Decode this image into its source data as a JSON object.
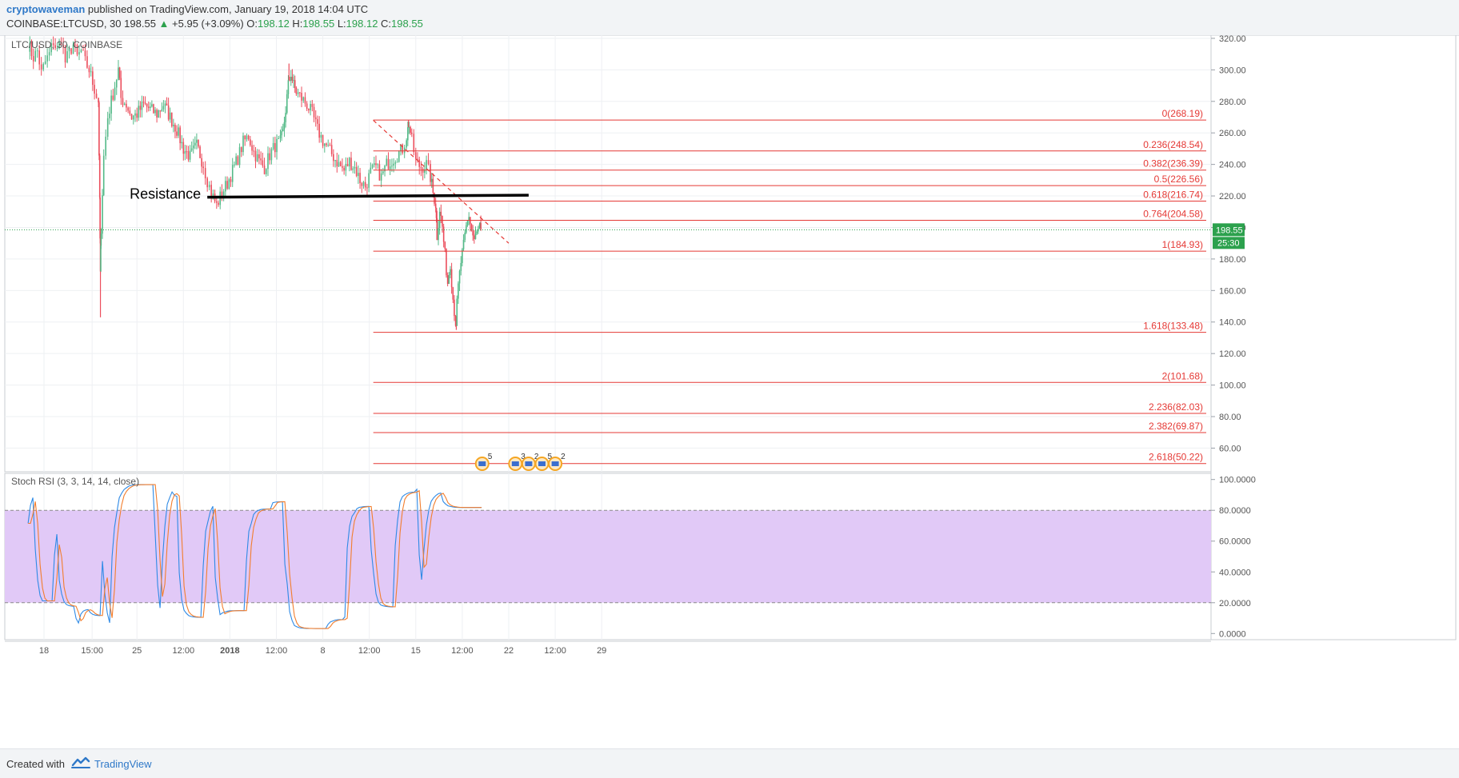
{
  "header": {
    "author": "cryptowaveman",
    "published": "published on TradingView.com, January 19, 2018 14:04 UTC",
    "symbol_line": "COINBASE:LTCUSD, 30",
    "last": "198.55",
    "change": "+5.95 (+3.09%)",
    "o_label": "O:",
    "o_value": "198.12",
    "h_label": "H:",
    "h_value": "198.55",
    "l_label": "L:",
    "l_value": "198.12",
    "c_label": "C:",
    "c_value": "198.55"
  },
  "footer": {
    "created_with": "Created with",
    "brand": "TradingView"
  },
  "chart_data": [
    {
      "type": "candlestick",
      "title": "LTC/USD, 30, COINBASE",
      "price_scale": {
        "range": [
          45,
          322
        ],
        "ticks": [
          320,
          300,
          280,
          260,
          240,
          220,
          200,
          180,
          160,
          140,
          120,
          100,
          80,
          60
        ],
        "tick_labels": [
          "320.00",
          "300.00",
          "280.00",
          "260.00",
          "240.00",
          "220.00",
          "200.00",
          "180.00",
          "160.00",
          "140.00",
          "120.00",
          "100.00",
          "80.00",
          "60.00"
        ]
      },
      "time_axis": {
        "labels": [
          "18",
          "15:00",
          "25",
          "12:00",
          "2018",
          "12:00",
          "8",
          "12:00",
          "15",
          "12:00",
          "22",
          "12:00",
          "29"
        ],
        "label_positions_days": [
          0,
          3.625,
          7,
          10.5,
          14,
          17.5,
          21,
          24.5,
          28,
          31.5,
          35,
          38.5,
          42
        ]
      },
      "last_price": {
        "label": "198.55",
        "countdown": "25:30",
        "value": 198.55,
        "color": "#2ca14d"
      },
      "price_path": [
        [
          -1.2,
          316
        ],
        [
          -0.8,
          308
        ],
        [
          -0.5,
          312
        ],
        [
          -0.2,
          298
        ],
        [
          0.1,
          305
        ],
        [
          0.4,
          310
        ],
        [
          0.7,
          318
        ],
        [
          1.0,
          312
        ],
        [
          1.3,
          320
        ],
        [
          1.6,
          305
        ],
        [
          1.9,
          311
        ],
        [
          2.2,
          316
        ],
        [
          2.5,
          308
        ],
        [
          2.8,
          312
        ],
        [
          3.1,
          305
        ],
        [
          3.4,
          300
        ],
        [
          3.8,
          288
        ],
        [
          4.1,
          280
        ],
        [
          4.2,
          215
        ],
        [
          4.25,
          170
        ],
        [
          4.3,
          200
        ],
        [
          4.5,
          245
        ],
        [
          4.8,
          270
        ],
        [
          5.2,
          285
        ],
        [
          5.6,
          300
        ],
        [
          5.8,
          282
        ],
        [
          6.2,
          278
        ],
        [
          6.6,
          270
        ],
        [
          7.0,
          272
        ],
        [
          7.5,
          278
        ],
        [
          8.0,
          275
        ],
        [
          8.5,
          272
        ],
        [
          9.0,
          278
        ],
        [
          9.5,
          270
        ],
        [
          10.0,
          262
        ],
        [
          10.5,
          250
        ],
        [
          11.0,
          245
        ],
        [
          11.5,
          252
        ],
        [
          12.0,
          240
        ],
        [
          12.3,
          230
        ],
        [
          12.6,
          222
        ],
        [
          13.0,
          214
        ],
        [
          13.4,
          222
        ],
        [
          13.8,
          228
        ],
        [
          14.2,
          236
        ],
        [
          14.6,
          244
        ],
        [
          15.0,
          254
        ],
        [
          15.4,
          258
        ],
        [
          15.8,
          248
        ],
        [
          16.2,
          242
        ],
        [
          16.6,
          238
        ],
        [
          17.0,
          246
        ],
        [
          17.4,
          252
        ],
        [
          17.8,
          254
        ],
        [
          18.0,
          260
        ],
        [
          18.2,
          275
        ],
        [
          18.4,
          290
        ],
        [
          18.6,
          298
        ],
        [
          18.8,
          290
        ],
        [
          19.0,
          286
        ],
        [
          19.4,
          282
        ],
        [
          19.8,
          278
        ],
        [
          20.2,
          272
        ],
        [
          20.6,
          262
        ],
        [
          21.0,
          255
        ],
        [
          21.4,
          250
        ],
        [
          21.8,
          245
        ],
        [
          22.2,
          240
        ],
        [
          22.6,
          236
        ],
        [
          23.0,
          242
        ],
        [
          23.4,
          238
        ],
        [
          23.8,
          230
        ],
        [
          24.2,
          226
        ],
        [
          24.6,
          235
        ],
        [
          25.0,
          238
        ],
        [
          25.4,
          232
        ],
        [
          25.8,
          240
        ],
        [
          26.2,
          243
        ],
        [
          26.6,
          246
        ],
        [
          27.0,
          250
        ],
        [
          27.3,
          258
        ],
        [
          27.5,
          266
        ],
        [
          27.7,
          255
        ],
        [
          28.0,
          242
        ],
        [
          28.4,
          238
        ],
        [
          28.8,
          240
        ],
        [
          29.1,
          232
        ],
        [
          29.3,
          222
        ],
        [
          29.5,
          215
        ],
        [
          29.6,
          195
        ],
        [
          29.8,
          212
        ],
        [
          30.0,
          200
        ],
        [
          30.2,
          182
        ],
        [
          30.4,
          165
        ],
        [
          30.6,
          178
        ],
        [
          30.8,
          155
        ],
        [
          31.0,
          140
        ],
        [
          31.2,
          162
        ],
        [
          31.4,
          178
        ],
        [
          31.6,
          188
        ],
        [
          31.8,
          200
        ],
        [
          32.0,
          208
        ],
        [
          32.2,
          198
        ],
        [
          32.4,
          192
        ],
        [
          32.6,
          196
        ],
        [
          32.8,
          200
        ],
        [
          32.9,
          198.55
        ]
      ],
      "price_extremes": [
        [
          4.25,
          143
        ],
        [
          18.45,
          304
        ],
        [
          27.45,
          268
        ],
        [
          31.05,
          135
        ]
      ],
      "fibonacci": {
        "x_range_days": [
          24.8,
          42
        ],
        "levels": [
          {
            "label": "0(268.19)",
            "value": 268.19
          },
          {
            "label": "0.236(248.54)",
            "value": 248.54
          },
          {
            "label": "0.382(236.39)",
            "value": 236.39
          },
          {
            "label": "0.5(226.56)",
            "value": 226.56
          },
          {
            "label": "0.618(216.74)",
            "value": 216.74
          },
          {
            "label": "0.764(204.58)",
            "value": 204.58
          },
          {
            "label": "1(184.93)",
            "value": 184.93
          },
          {
            "label": "1.618(133.48)",
            "value": 133.48
          },
          {
            "label": "2(101.68)",
            "value": 101.68
          },
          {
            "label": "2.236(82.03)",
            "value": 82.03
          },
          {
            "label": "2.382(69.87)",
            "value": 69.87
          },
          {
            "label": "2.618(50.22)",
            "value": 50.22
          }
        ],
        "color": "#e53935"
      },
      "trendline": {
        "from": [
          24.8,
          268
        ],
        "to": [
          35,
          190
        ],
        "style": "dashed",
        "color": "#e53935"
      },
      "resistance": {
        "label": "Resistance",
        "from": [
          12.3,
          219.2
        ],
        "to": [
          36.5,
          220.5
        ],
        "color": "#000000"
      },
      "event_markers": [
        {
          "x_days": 33.0,
          "count": "5"
        },
        {
          "x_days": 35.5,
          "count": "3"
        },
        {
          "x_days": 36.5,
          "count": "2"
        },
        {
          "x_days": 37.5,
          "count": "5"
        },
        {
          "x_days": 38.5,
          "count": "2"
        }
      ]
    },
    {
      "type": "line",
      "title": "Stoch RSI (3, 3, 14, 14, close)",
      "y_scale": {
        "range": [
          -4,
          104
        ],
        "ticks": [
          100,
          80,
          60,
          40,
          20,
          0
        ],
        "tick_labels": [
          "100.0000",
          "80.0000",
          "60.0000",
          "40.0000",
          "20.0000",
          "0.0000"
        ]
      },
      "bands": {
        "upper": 80,
        "lower": 20,
        "fill": "#e1c9f7"
      },
      "series": [
        {
          "color": "#2e8ae6",
          "phase": 0
        },
        {
          "color": "#f27e2e",
          "phase": 1
        }
      ],
      "x_range_days": [
        -1.2,
        32.9
      ]
    }
  ]
}
